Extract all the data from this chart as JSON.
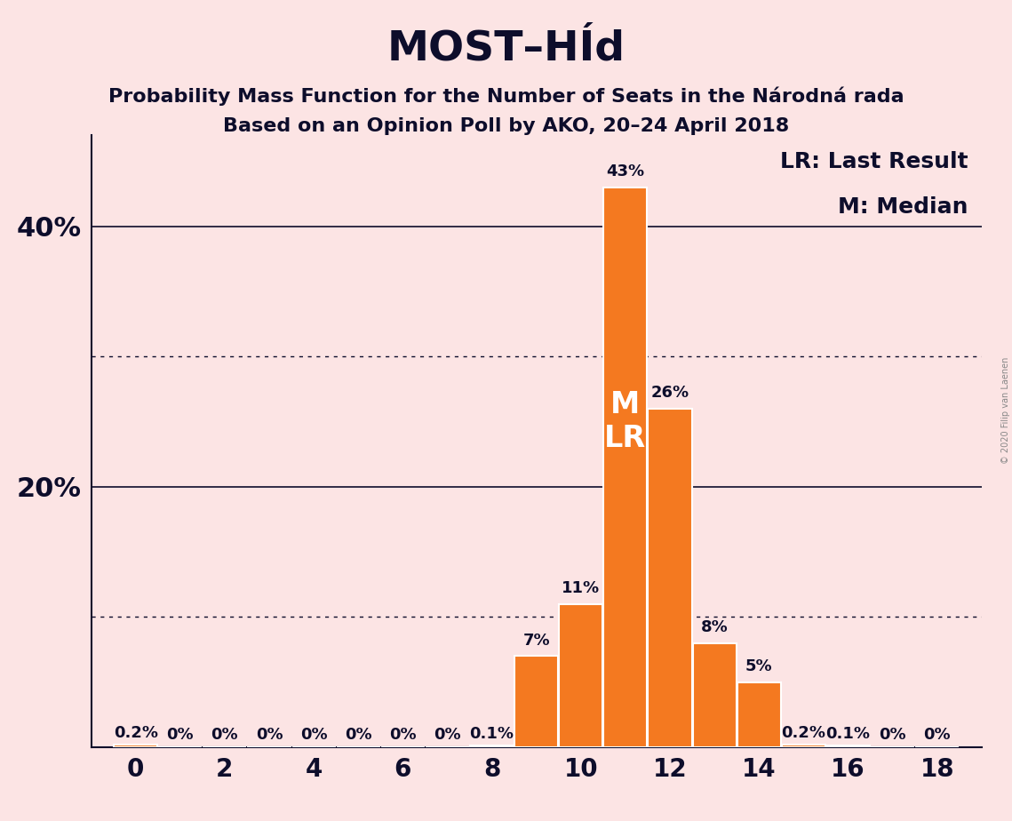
{
  "title": "MOST–HÍd",
  "subtitle1": "Probability Mass Function for the Number of Seats in the Národná rada",
  "subtitle2": "Based on an Opinion Poll by AKO, 20–24 April 2018",
  "watermark": "© 2020 Filip van Laenen",
  "legend_lr": "LR: Last Result",
  "legend_m": "M: Median",
  "background_color": "#fce4e4",
  "bar_color": "#f47920",
  "bar_edge_color": "#ffffff",
  "seats": [
    0,
    1,
    2,
    3,
    4,
    5,
    6,
    7,
    8,
    9,
    10,
    11,
    12,
    13,
    14,
    15,
    16,
    17,
    18
  ],
  "probabilities": [
    0.2,
    0.0,
    0.0,
    0.0,
    0.0,
    0.0,
    0.0,
    0.0,
    0.1,
    7.0,
    11.0,
    43.0,
    26.0,
    8.0,
    5.0,
    0.2,
    0.1,
    0.0,
    0.0
  ],
  "labels": [
    "0.2%",
    "0%",
    "0%",
    "0%",
    "0%",
    "0%",
    "0%",
    "0%",
    "0.1%",
    "7%",
    "11%",
    "43%",
    "26%",
    "8%",
    "5%",
    "0.2%",
    "0.1%",
    "0%",
    "0%"
  ],
  "median_seat": 11,
  "last_result_seat": 11,
  "ytick_solid": [
    20,
    40
  ],
  "ytick_dotted": [
    10,
    30
  ],
  "ytick_labeled": [
    20,
    40
  ],
  "ytick_labels_map": {
    "20": "20%",
    "40": "40%"
  },
  "xticks": [
    0,
    2,
    4,
    6,
    8,
    10,
    12,
    14,
    16,
    18
  ],
  "ymax": 47,
  "title_fontsize": 34,
  "subtitle_fontsize": 16,
  "axis_fontsize": 20,
  "bar_label_fontsize": 13,
  "legend_fontsize": 18,
  "ml_fontsize": 24,
  "ytick_label_fontsize": 22,
  "text_color": "#0d0d2b"
}
